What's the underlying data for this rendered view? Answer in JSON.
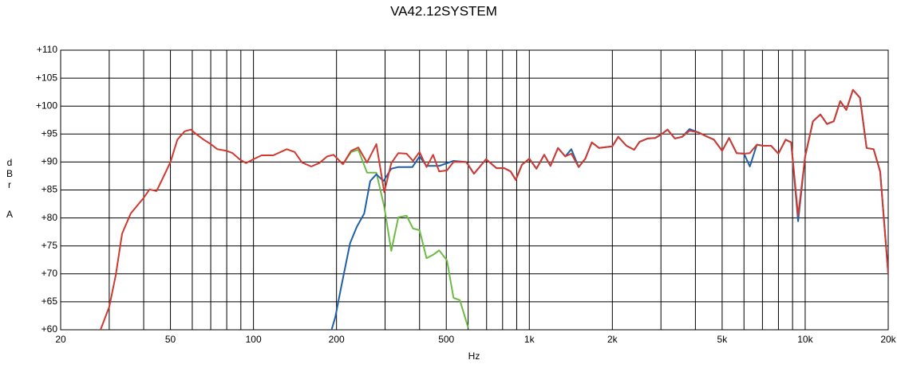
{
  "chart_data": {
    "type": "line",
    "title": "VA42.12SYSTEM",
    "ylabel": "dBr",
    "ylabel_unit": "A",
    "xlabel": "Hz",
    "xscale": "log",
    "grid": true,
    "xlim": [
      20,
      20000
    ],
    "ylim": [
      60,
      110
    ],
    "xticks": [
      20,
      50,
      100,
      200,
      500,
      {
        "value": 1000,
        "label": "1k"
      },
      {
        "value": 2000,
        "label": "2k"
      },
      {
        "value": 5000,
        "label": "5k"
      },
      {
        "value": 10000,
        "label": "10k"
      },
      {
        "value": 20000,
        "label": "20k"
      }
    ],
    "xminor": [
      30,
      40,
      60,
      70,
      80,
      90,
      300,
      400,
      600,
      700,
      800,
      900,
      3000,
      4000,
      6000,
      7000,
      8000,
      9000
    ],
    "yticks": [
      {
        "value": 60,
        "label": "+60"
      },
      {
        "value": 65,
        "label": "+65"
      },
      {
        "value": 70,
        "label": "+70"
      },
      {
        "value": 75,
        "label": "+75"
      },
      {
        "value": 80,
        "label": "+80"
      },
      {
        "value": 85,
        "label": "+85"
      },
      {
        "value": 90,
        "label": "+90"
      },
      {
        "value": 95,
        "label": "+95"
      },
      {
        "value": 100,
        "label": "+100"
      },
      {
        "value": 105,
        "label": "+105"
      },
      {
        "value": 110,
        "label": "+110"
      }
    ],
    "series": [
      {
        "color": "#6dbb45",
        "x": [
          195,
          211,
          226,
          240,
          258,
          279,
          298,
          316,
          335,
          359,
          379,
          400,
          424,
          448,
          471,
          503,
          531,
          560,
          600
        ],
        "values": [
          91.3,
          89.6,
          91.8,
          92.2,
          88.1,
          88.1,
          82,
          74.1,
          80.1,
          80.4,
          78.1,
          77.8,
          72.8,
          73.4,
          74.2,
          72.4,
          65.7,
          65.3,
          60.4
        ]
      },
      {
        "color": "#1f5fa8",
        "x": [
          192,
          198,
          208,
          224,
          237,
          252,
          265,
          279,
          296,
          316,
          335,
          377,
          400,
          424,
          471,
          531,
          591,
          630,
          697,
          760,
          812,
          856,
          893,
          940,
          1000,
          1061,
          1133,
          1193,
          1270,
          1350,
          1420,
          1510,
          1595,
          1685,
          1790,
          2000,
          2100,
          2250,
          2400,
          2510,
          2680,
          2860,
          3000,
          3170,
          3370,
          3580,
          3810,
          4100,
          4380,
          4670,
          5000,
          5300,
          5640,
          6000,
          6300,
          6680,
          7050,
          7520,
          8000,
          8500,
          8900,
          9430,
          10000,
          10670,
          11350,
          12000,
          12700,
          13400,
          14100,
          14900,
          15800,
          16700,
          17700,
          18700,
          20000
        ],
        "values": [
          60,
          62.3,
          67.7,
          75.5,
          78.4,
          80.8,
          86.6,
          87.8,
          86.6,
          88.8,
          89.1,
          89.1,
          91,
          89.3,
          89.3,
          90.2,
          90,
          87.9,
          90.5,
          88.9,
          88.9,
          88.3,
          86.8,
          89.5,
          90.6,
          88.8,
          91.3,
          89.3,
          92.5,
          91,
          92.3,
          89.1,
          90.6,
          93.5,
          92.5,
          92.8,
          94.5,
          92.9,
          92.2,
          93.6,
          94.2,
          94.3,
          94.9,
          95.8,
          94.2,
          94.5,
          95.9,
          95.3,
          94.6,
          94,
          92,
          94.3,
          91.6,
          91.5,
          89.2,
          93.1,
          92.9,
          92.9,
          91.5,
          94,
          93.5,
          79.4,
          91,
          97.3,
          98.5,
          96.8,
          97.3,
          100.9,
          99.3,
          102.9,
          101.5,
          92.5,
          92.3,
          88.3,
          70
        ]
      },
      {
        "color": "#d03a30",
        "x": [
          27.9,
          30,
          31.7,
          33.4,
          35.9,
          40,
          42,
          44.5,
          46.8,
          50,
          53,
          56.3,
          59.3,
          62,
          66,
          70,
          74,
          80,
          84,
          89,
          94,
          100,
          107,
          118,
          132,
          141,
          150,
          162,
          173,
          185,
          195,
          211,
          226,
          240,
          258,
          279,
          298,
          316,
          335,
          359,
          379,
          400,
          424,
          448,
          471,
          503,
          531,
          591,
          630,
          697,
          760,
          812,
          856,
          893,
          940,
          1000,
          1061,
          1133,
          1193,
          1270,
          1350,
          1420,
          1510,
          1595,
          1685,
          1790,
          2000,
          2100,
          2250,
          2400,
          2510,
          2680,
          2860,
          3000,
          3170,
          3370,
          3580,
          3810,
          4100,
          4380,
          4670,
          5000,
          5300,
          5640,
          6000,
          6300,
          6680,
          7050,
          7520,
          8000,
          8500,
          8900,
          9430,
          10000,
          10670,
          11350,
          12000,
          12700,
          13400,
          14100,
          14900,
          15800,
          16700,
          17700,
          18700,
          20000
        ],
        "values": [
          60,
          64.1,
          69.8,
          77.2,
          80.8,
          83.6,
          85.1,
          84.8,
          87,
          90,
          94,
          95.5,
          95.8,
          95,
          94,
          93.2,
          92.3,
          92,
          91.6,
          90.5,
          89.8,
          90.5,
          91.2,
          91.2,
          92.3,
          91.8,
          89.9,
          89.2,
          89.8,
          91,
          91.3,
          89.6,
          92,
          92.6,
          89.9,
          93.2,
          84.6,
          89.8,
          91.6,
          91.5,
          90.2,
          91.8,
          89.1,
          91.3,
          88.3,
          88.5,
          90,
          90,
          87.9,
          90.5,
          88.9,
          88.9,
          88.3,
          86.8,
          89.5,
          90.6,
          88.8,
          91.3,
          89.3,
          92.5,
          91,
          91.5,
          89.1,
          90.6,
          93.5,
          92.5,
          92.8,
          94.5,
          92.9,
          92.2,
          93.6,
          94.2,
          94.3,
          94.9,
          95.8,
          94.2,
          94.5,
          95.6,
          95.3,
          94.6,
          94,
          92,
          94.3,
          91.6,
          91.5,
          91.6,
          93.1,
          92.9,
          92.9,
          91.5,
          94,
          93.5,
          80.4,
          91,
          97.3,
          98.5,
          96.8,
          97.3,
          100.9,
          99.3,
          102.9,
          101.5,
          92.5,
          92.3,
          88.3,
          70
        ]
      }
    ]
  }
}
